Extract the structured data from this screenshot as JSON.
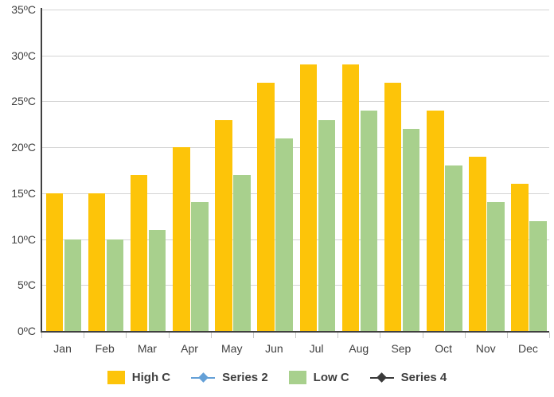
{
  "chart_data": {
    "type": "bar",
    "title": "",
    "xlabel": "",
    "ylabel": "",
    "categories": [
      "Jan",
      "Feb",
      "Mar",
      "Apr",
      "May",
      "Jun",
      "Jul",
      "Aug",
      "Sep",
      "Oct",
      "Nov",
      "Dec"
    ],
    "series": [
      {
        "name": "High C",
        "type": "bar",
        "color": "#FDC409",
        "values": [
          15,
          15,
          17,
          20,
          23,
          27,
          29,
          29,
          27,
          24,
          19,
          16
        ]
      },
      {
        "name": "Series 2",
        "type": "line",
        "color": "#64A0D7",
        "marker": "diamond",
        "values": []
      },
      {
        "name": "Low C",
        "type": "bar",
        "color": "#A8D08D",
        "values": [
          10,
          10,
          11,
          14,
          17,
          21,
          23,
          24,
          22,
          18,
          14,
          12
        ]
      },
      {
        "name": "Series 4",
        "type": "line",
        "color": "#3A3A3A",
        "marker": "diamond",
        "values": []
      }
    ],
    "ylim": [
      0,
      35
    ],
    "ytick_step": 5,
    "yticks": [
      "0ºC",
      "5ºC",
      "10ºC",
      "15ºC",
      "20ºC",
      "25ºC",
      "30ºC",
      "35ºC"
    ],
    "grid": true,
    "legend_position": "bottom",
    "colors": {
      "axis": "#404040",
      "gridline": "#d4d4d4",
      "tick": "#c8c8c8",
      "text": "#404040",
      "legend_text": "#3f3f3f",
      "background": "#ffffff"
    }
  }
}
